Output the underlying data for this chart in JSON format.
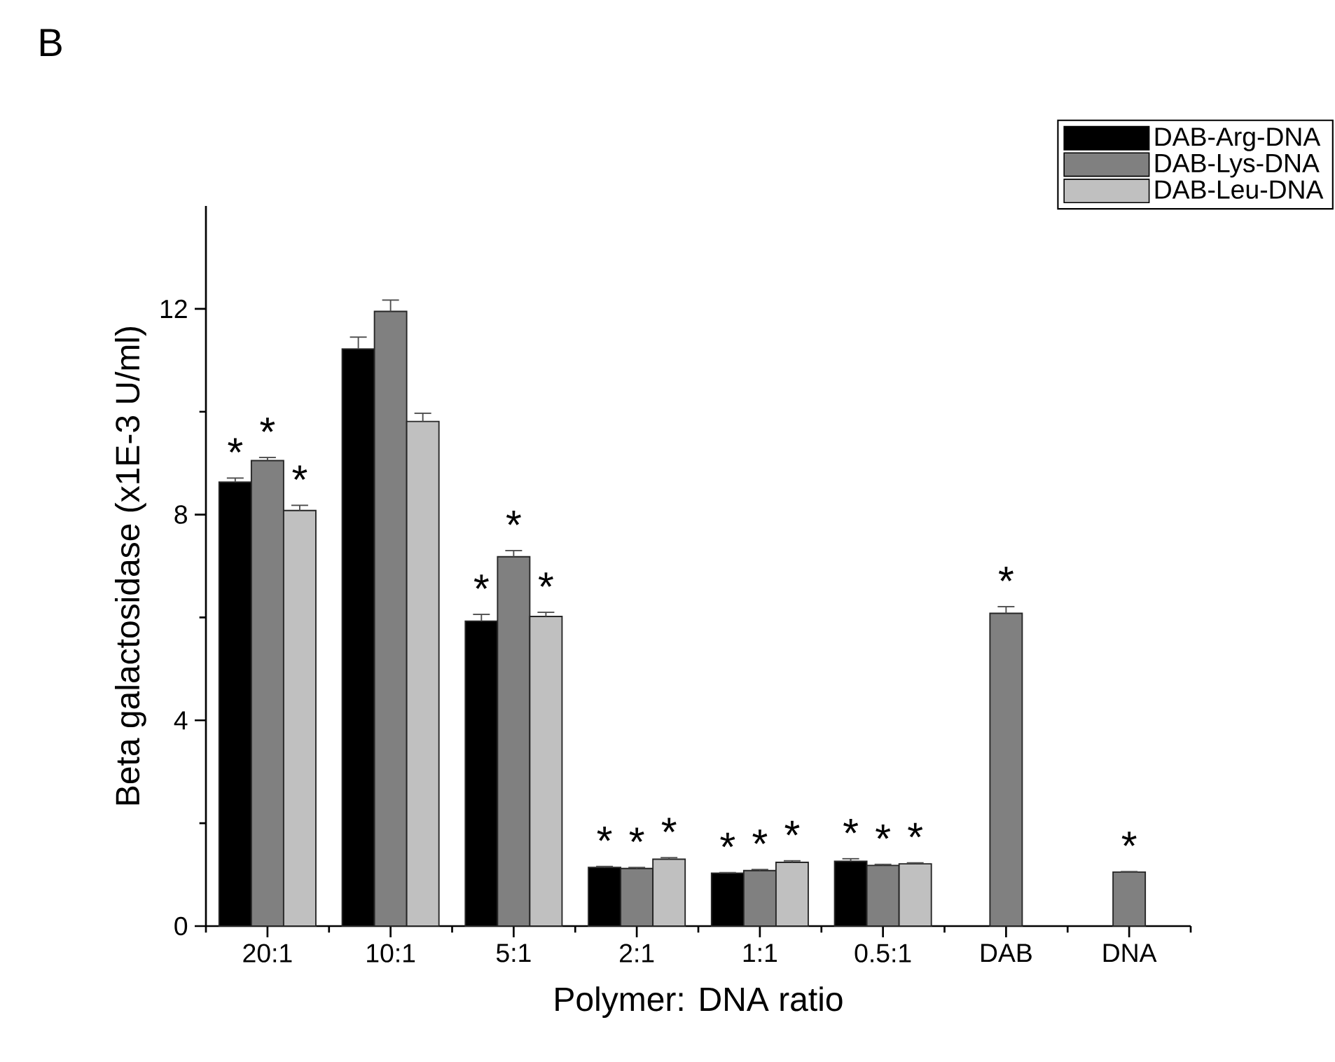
{
  "chart_data": {
    "type": "bar",
    "title": "B",
    "xlabel": "Polymer: DNA ratio",
    "ylabel": "Beta galactosidase (x1E-3 U/ml)",
    "categories": [
      "20:1",
      "10:1",
      "5:1",
      "2:1",
      "1:1",
      "0.5:1",
      "DAB",
      "DNA"
    ],
    "series": [
      {
        "name": "DAB-Arg-DNA",
        "color": "#000000",
        "values": [
          8.63,
          11.22,
          5.93,
          1.14,
          1.03,
          1.26,
          null,
          null
        ],
        "errors": [
          0.08,
          0.23,
          0.13,
          0.02,
          0.01,
          0.05,
          null,
          null
        ],
        "value_labels": [
          "*",
          null,
          "*",
          "*",
          "*",
          "*",
          null,
          null
        ]
      },
      {
        "name": "DAB-Lys-DNA",
        "color": "#808080",
        "values": [
          9.05,
          11.95,
          7.18,
          1.12,
          1.08,
          1.18,
          6.08,
          1.05
        ],
        "errors": [
          0.06,
          0.22,
          0.12,
          0.02,
          0.02,
          0.02,
          0.13,
          0.01
        ],
        "value_labels": [
          "*",
          null,
          "*",
          "*",
          "*",
          "*",
          "*",
          "*"
        ]
      },
      {
        "name": "DAB-Leu-DNA",
        "color": "#c0c0c0",
        "values": [
          8.08,
          9.81,
          6.02,
          1.3,
          1.24,
          1.21,
          null,
          null
        ],
        "errors": [
          0.1,
          0.16,
          0.08,
          0.03,
          0.03,
          0.02,
          null,
          null
        ],
        "value_labels": [
          "*",
          null,
          "*",
          "*",
          "*",
          "*",
          null,
          null
        ]
      }
    ],
    "ylim": [
      0,
      14
    ],
    "yticks": [
      0,
      4,
      8,
      12
    ],
    "legend": "top right"
  }
}
